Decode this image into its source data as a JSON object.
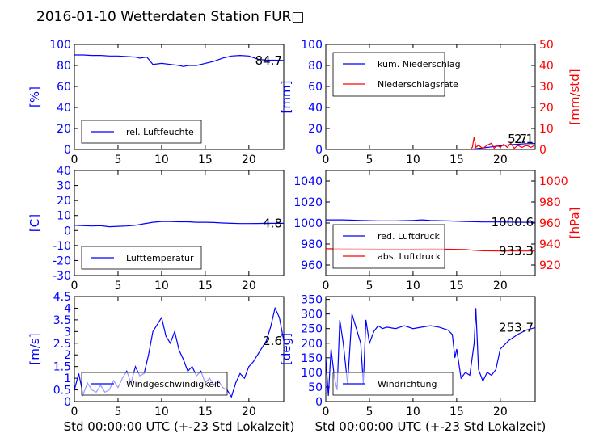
{
  "title": "2016-01-10 Wetterdaten Station FUR□",
  "chart_data": [
    {
      "type": "line",
      "panel": "top-left",
      "ylabel": "[%]",
      "ylim": [
        0,
        100
      ],
      "yticks": [
        0,
        20,
        40,
        60,
        80,
        100
      ],
      "xlim": [
        0,
        24
      ],
      "xticks": [
        0,
        5,
        10,
        15,
        20
      ],
      "last_value_label": "84.7",
      "legend_location": "lower-left",
      "series": [
        {
          "name": "rel. Luftfeuchte",
          "color": "#0000ff",
          "x": [
            0,
            1,
            2,
            3,
            4,
            5,
            6,
            7,
            7.5,
            8.3,
            8.7,
            9,
            10,
            11,
            12,
            12.5,
            13,
            14,
            15,
            16,
            17,
            18,
            19,
            20,
            21,
            22,
            23,
            24
          ],
          "y": [
            90,
            90,
            89.5,
            89.5,
            89,
            89,
            88.5,
            88,
            87,
            88,
            84,
            81,
            82,
            81,
            80,
            79,
            80,
            80,
            82,
            84,
            87,
            89,
            89.5,
            89,
            86,
            85,
            85,
            84.7
          ]
        }
      ]
    },
    {
      "type": "line",
      "panel": "top-right",
      "ylabel": "[mm]",
      "ylim": [
        0,
        100
      ],
      "yticks": [
        0,
        20,
        40,
        60,
        80,
        100
      ],
      "y2label": "[mm/std]",
      "y2lim": [
        0,
        50
      ],
      "y2ticks": [
        0,
        10,
        20,
        30,
        40,
        50
      ],
      "xlim": [
        0,
        24
      ],
      "xticks": [
        0,
        5,
        10,
        15,
        20
      ],
      "last_value_labels": [
        "5.7",
        "2.1"
      ],
      "legend_location": "upper-left",
      "series": [
        {
          "name": "kum. Niederschlag",
          "color": "#0000ff",
          "axis": "left",
          "x": [
            0,
            16.5,
            17,
            18,
            19,
            20,
            21,
            22,
            23,
            24
          ],
          "y": [
            0,
            0,
            0.5,
            1.5,
            2.5,
            3.5,
            4.5,
            5.0,
            5.5,
            5.7
          ]
        },
        {
          "name": "Niederschlagsrate",
          "color": "#ff0000",
          "axis": "right",
          "x": [
            0,
            16.5,
            16.8,
            17,
            17.2,
            17.5,
            18,
            18.5,
            19,
            19.3,
            19.6,
            20,
            20.4,
            20.8,
            21.2,
            21.6,
            22,
            22.5,
            23,
            23.5,
            24
          ],
          "y": [
            0,
            0,
            1,
            6,
            1,
            2,
            0.5,
            2,
            3,
            0.5,
            2,
            1,
            2.5,
            1,
            3,
            0.5,
            2,
            1,
            2,
            1,
            2.1
          ]
        }
      ]
    },
    {
      "type": "line",
      "panel": "middle-left",
      "ylabel": "[C]",
      "ylim": [
        -30,
        40
      ],
      "yticks": [
        -30,
        -20,
        -10,
        0,
        10,
        20,
        30,
        40
      ],
      "xlim": [
        0,
        24
      ],
      "xticks": [
        0,
        5,
        10,
        15,
        20
      ],
      "last_value_label": "4.8",
      "legend_location": "lower-left",
      "series": [
        {
          "name": "Lufttemperatur",
          "color": "#0000ff",
          "x": [
            0,
            1,
            2,
            3,
            4,
            5,
            6,
            7,
            8,
            9,
            10,
            11,
            12,
            13,
            14,
            15,
            16,
            17,
            18,
            19,
            20,
            21,
            22,
            23,
            24
          ],
          "y": [
            3.5,
            3.2,
            3,
            3.2,
            2.5,
            2.8,
            3,
            3.5,
            4.5,
            5.5,
            6,
            6,
            5.8,
            5.8,
            5.5,
            5.5,
            5.3,
            5,
            4.8,
            4.6,
            4.6,
            4.7,
            4.8,
            4.8,
            4.8
          ]
        }
      ]
    },
    {
      "type": "line",
      "panel": "middle-right",
      "ylabel": "",
      "ylim": [
        950,
        1050
      ],
      "yticks": [
        960,
        980,
        1000,
        1020,
        1040
      ],
      "y2label": "[hPa]",
      "y2lim": [
        910,
        1010
      ],
      "y2ticks": [
        920,
        940,
        960,
        980,
        1000
      ],
      "xlim": [
        0,
        24
      ],
      "xticks": [
        0,
        5,
        10,
        15,
        20
      ],
      "last_value_labels": [
        "1000.6",
        "933.3"
      ],
      "legend_location": "center-left",
      "series": [
        {
          "name": "red. Luftdruck",
          "color": "#0000ff",
          "axis": "left",
          "x": [
            0,
            2,
            4,
            6,
            8,
            10,
            11,
            12,
            14,
            16,
            18,
            20,
            22,
            24
          ],
          "y": [
            1003,
            1003,
            1002.5,
            1002,
            1002,
            1002.5,
            1003,
            1002.5,
            1002,
            1001.5,
            1001,
            1001,
            1000.8,
            1000.6
          ]
        },
        {
          "name": "abs. Luftdruck",
          "color": "#ff0000",
          "axis": "right",
          "x": [
            0,
            2,
            4,
            6,
            8,
            10,
            12,
            14,
            16,
            17,
            18,
            20,
            22,
            24
          ],
          "y": [
            935.5,
            935.3,
            935.2,
            935,
            935,
            935,
            935.2,
            935,
            934.8,
            934,
            933.5,
            933.3,
            933.3,
            933.3
          ]
        }
      ]
    },
    {
      "type": "line",
      "panel": "bottom-left",
      "ylabel": "[m/s]",
      "xlabel": "Std 00:00:00 UTC (+-23 Std Lokalzeit)",
      "ylim": [
        0,
        4.5
      ],
      "yticks": [
        0.0,
        0.5,
        1.0,
        1.5,
        2.0,
        2.5,
        3.0,
        3.5,
        4.0,
        4.5
      ],
      "xlim": [
        0,
        24
      ],
      "xticks": [
        0,
        5,
        10,
        15,
        20
      ],
      "last_value_label": "2.6",
      "legend_location": "lower-left",
      "series": [
        {
          "name": "Windgeschwindigkeit",
          "color": "#0000ff",
          "x": [
            0,
            0.5,
            1,
            1.5,
            2,
            2.5,
            3,
            3.5,
            4,
            4.5,
            5,
            5.5,
            6,
            6.5,
            7,
            7.5,
            8,
            8.5,
            9,
            9.5,
            10,
            10.5,
            11,
            11.5,
            12,
            12.5,
            13,
            13.5,
            14,
            14.5,
            15,
            15.5,
            16,
            16.5,
            17,
            17.5,
            18,
            18.5,
            19,
            19.5,
            20,
            20.5,
            21,
            21.5,
            22,
            22.5,
            23,
            23.5,
            24
          ],
          "y": [
            0.5,
            1.2,
            0.3,
            0.8,
            0.5,
            0.4,
            0.7,
            0.4,
            0.5,
            0.9,
            0.6,
            1.0,
            1.3,
            0.8,
            1.5,
            1.1,
            1.2,
            2.0,
            3.0,
            3.3,
            3.6,
            2.8,
            2.5,
            3.0,
            2.2,
            1.8,
            1.3,
            1.5,
            1.1,
            1.3,
            0.8,
            1.0,
            0.7,
            0.9,
            0.6,
            0.5,
            0.2,
            0.8,
            1.2,
            1.0,
            1.5,
            1.7,
            2.0,
            2.3,
            2.6,
            3.2,
            4.0,
            3.6,
            2.6
          ]
        }
      ]
    },
    {
      "type": "line",
      "panel": "bottom-right",
      "ylabel": "[deg]",
      "xlabel": "Std 00:00:00 UTC (+-23 Std Lokalzeit)",
      "ylim": [
        0,
        360
      ],
      "yticks": [
        0,
        50,
        100,
        150,
        200,
        250,
        300,
        350
      ],
      "xlim": [
        0,
        24
      ],
      "xticks": [
        0,
        5,
        10,
        15,
        20
      ],
      "last_value_label": "253.7",
      "legend_location": "lower-left",
      "series": [
        {
          "name": "Windrichtung",
          "color": "#0000ff",
          "x": [
            0,
            0.3,
            0.6,
            1,
            1.3,
            1.6,
            2,
            2.5,
            3,
            3.5,
            4,
            4.3,
            4.6,
            5,
            5.5,
            6,
            6.5,
            7,
            8,
            9,
            10,
            11,
            12,
            13,
            14,
            14.5,
            14.8,
            15,
            15.5,
            16,
            16.5,
            17,
            17.2,
            17.5,
            18,
            18.5,
            19,
            19.5,
            20,
            21,
            22,
            23,
            24
          ],
          "y": [
            150,
            20,
            180,
            80,
            40,
            280,
            200,
            60,
            300,
            250,
            200,
            60,
            280,
            200,
            240,
            260,
            250,
            255,
            250,
            260,
            250,
            255,
            260,
            255,
            245,
            230,
            150,
            180,
            80,
            100,
            90,
            200,
            320,
            110,
            70,
            100,
            90,
            110,
            180,
            210,
            230,
            245,
            253.7
          ]
        }
      ]
    }
  ]
}
